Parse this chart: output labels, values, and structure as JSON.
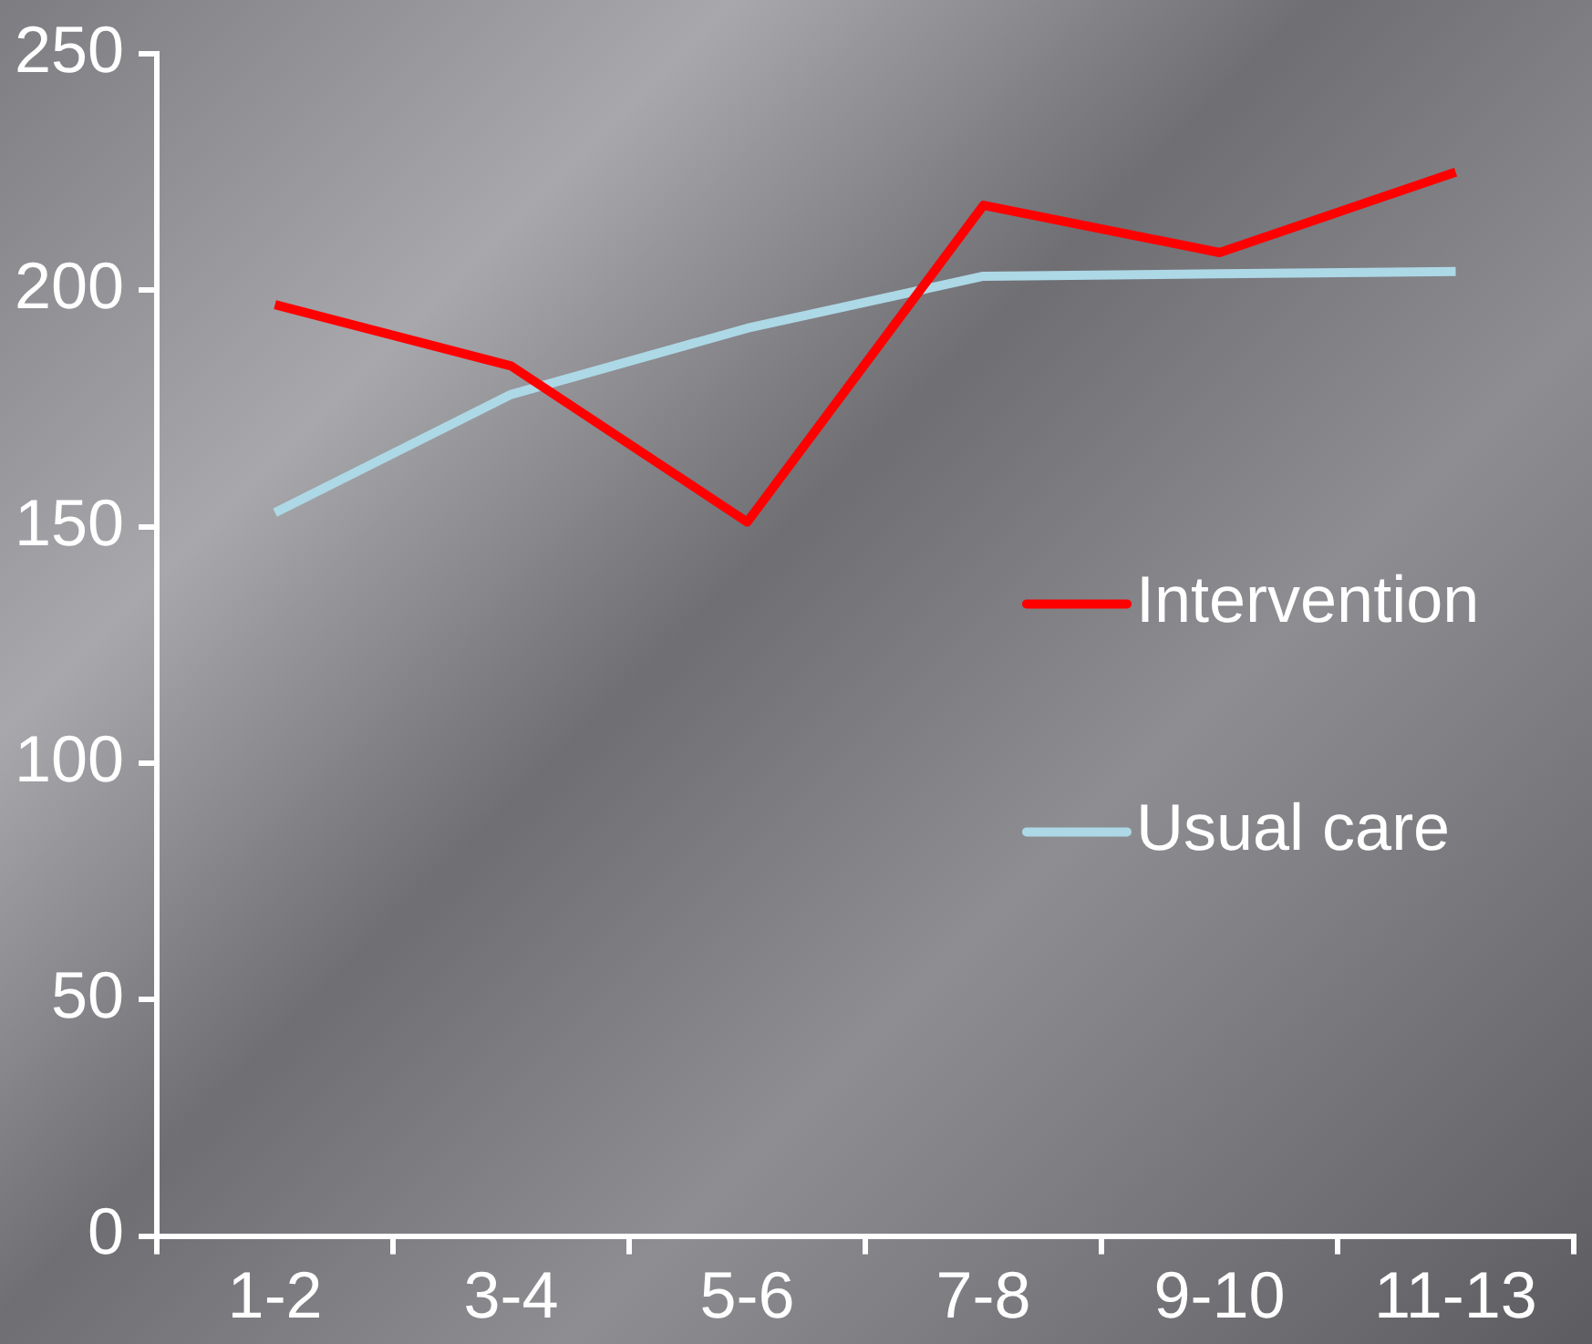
{
  "chart_data": {
    "type": "line",
    "categories": [
      "1-2",
      "3-4",
      "5-6",
      "7-8",
      "9-10",
      "11-13"
    ],
    "series": [
      {
        "name": "Intervention",
        "color": "#ff0000",
        "values": [
          197,
          184,
          151,
          218,
          208,
          225
        ]
      },
      {
        "name": "Usual care",
        "color": "#add8e6",
        "values": [
          153,
          178,
          192,
          203,
          203.5,
          204
        ]
      }
    ],
    "ylim": [
      0,
      250
    ],
    "yticks": [
      0,
      50,
      100,
      150,
      200,
      250
    ],
    "grid": false,
    "legend": "right",
    "marker": "none",
    "line_style": "solid"
  }
}
